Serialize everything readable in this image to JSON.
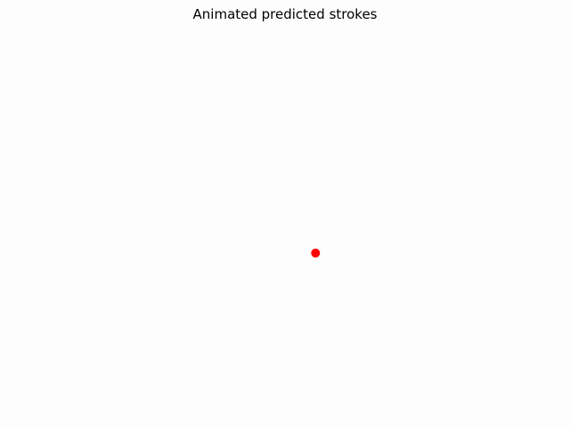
{
  "chart_data": {
    "type": "scatter",
    "title": "Animated predicted strokes",
    "axes_visible": false,
    "grid": false,
    "series": [
      {
        "points": [
          {
            "x": 0.553,
            "y": 0.388
          }
        ],
        "color": "#ff0000",
        "marker": "circle"
      }
    ],
    "xlim": [
      0,
      1
    ],
    "ylim": [
      0,
      1
    ]
  }
}
